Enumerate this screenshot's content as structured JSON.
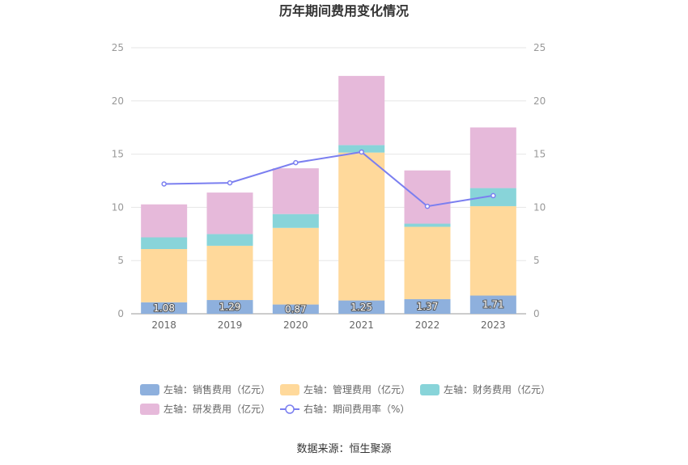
{
  "chart_data": {
    "type": "bar",
    "title": "历年期间费用变化情况",
    "categories": [
      "2018",
      "2019",
      "2020",
      "2021",
      "2022",
      "2023"
    ],
    "left_axis": {
      "ylim": [
        0,
        25
      ],
      "ticks": [
        "0",
        "5",
        "10",
        "15",
        "20",
        "25"
      ]
    },
    "right_axis": {
      "ylim": [
        0,
        25
      ],
      "ticks": [
        "0",
        "5",
        "10",
        "15",
        "20",
        "25"
      ]
    },
    "series": [
      {
        "name": "左轴：销售费用（亿元）",
        "type": "bar",
        "axis": "left",
        "color": "#8eb0dd",
        "values": [
          1.08,
          1.29,
          0.87,
          1.25,
          1.37,
          1.71
        ],
        "labels": [
          "1.08",
          "1.29",
          "0.87",
          "1.25",
          "1.37",
          "1.71"
        ]
      },
      {
        "name": "左轴：管理费用（亿元）",
        "type": "bar",
        "axis": "left",
        "color": "#ffd99b",
        "values": [
          5.0,
          5.1,
          7.2,
          13.9,
          6.8,
          8.4
        ]
      },
      {
        "name": "左轴：财务费用（亿元）",
        "type": "bar",
        "axis": "left",
        "color": "#88d4d9",
        "values": [
          1.1,
          1.1,
          1.3,
          0.7,
          0.3,
          1.7
        ]
      },
      {
        "name": "左轴：研发费用（亿元）",
        "type": "bar",
        "axis": "left",
        "color": "#e6b9da",
        "values": [
          3.1,
          3.9,
          4.3,
          6.5,
          5.0,
          5.7
        ]
      },
      {
        "name": "右轴：期间费用率（%）",
        "type": "line",
        "axis": "right",
        "color": "#7b7ff0",
        "values": [
          12.2,
          12.3,
          14.2,
          15.2,
          10.1,
          11.1
        ]
      }
    ],
    "legend_position": "bottom",
    "grid": true
  },
  "source": "数据来源：恒生聚源"
}
